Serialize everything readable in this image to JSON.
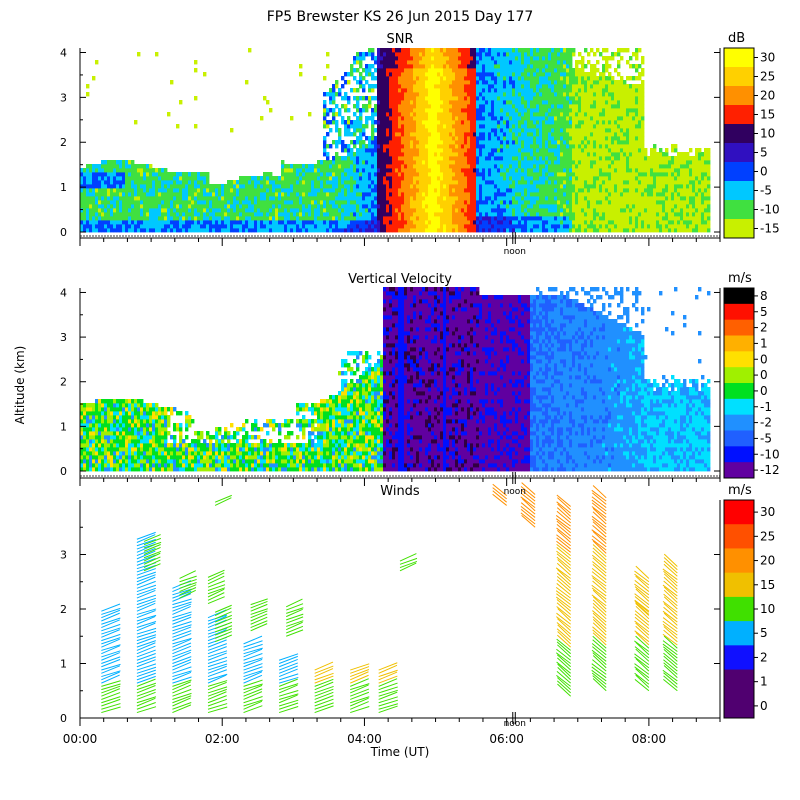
{
  "figure_title": "FP5 Brewster KS  26 Jun 2015 Day 177",
  "y_axis_label": "Altitude (km)",
  "x_axis_label": "Time (UT)",
  "noon_label": "noon",
  "colors": {
    "snr": [
      "#c8f000",
      "#40e040",
      "#00c8ff",
      "#0040ff",
      "#3010c0",
      "#300060",
      "#ff2000",
      "#ff9000",
      "#ffd000",
      "#ffff00"
    ],
    "vel": [
      "#300040",
      "#6000a0",
      "#0010ff",
      "#2060ff",
      "#2090ff",
      "#00e0ff",
      "#00e020",
      "#a0f000",
      "#ffe000",
      "#ffb000",
      "#ff6000",
      "#ff1000",
      "#000000"
    ],
    "wind": [
      "#500070",
      "#1010ff",
      "#00b0ff",
      "#40e000",
      "#f0c000",
      "#ff9000",
      "#ff5000",
      "#ff0000"
    ]
  },
  "chart_data": [
    {
      "type": "heatmap",
      "title": "SNR",
      "units": "dB",
      "xlim": [
        0,
        9
      ],
      "ylim": [
        0,
        4.1
      ],
      "x_ticks": [
        0,
        2,
        4,
        6,
        8
      ],
      "y_ticks": [
        0,
        1,
        2,
        3,
        4
      ],
      "colorbar_labels": [
        "30",
        "25",
        "20",
        "15",
        "10",
        "5",
        "0",
        "-5",
        "-10",
        "-15"
      ]
    },
    {
      "type": "heatmap",
      "title": "Vertical Velocity",
      "units": "m/s",
      "xlim": [
        0,
        9
      ],
      "ylim": [
        0,
        4.1
      ],
      "x_ticks": [
        0,
        2,
        4,
        6,
        8
      ],
      "y_ticks": [
        0,
        1,
        2,
        3,
        4
      ],
      "colorbar_labels": [
        "8",
        "5",
        "2",
        "1",
        "0",
        "0",
        "0",
        "-1",
        "-2",
        "-5",
        "-10",
        "-12"
      ]
    },
    {
      "type": "scatter",
      "title": "Winds",
      "units": "m/s",
      "xlim": [
        0,
        9
      ],
      "ylim": [
        0,
        4
      ],
      "x_ticks": [
        0,
        2,
        4,
        6,
        8
      ],
      "x_tick_labels": [
        "00:00",
        "02:00",
        "04:00",
        "06:00",
        "08:00"
      ],
      "y_ticks": [
        0,
        1,
        2,
        3
      ],
      "colorbar_labels": [
        "30",
        "25",
        "20",
        "15",
        "10",
        "5",
        "2",
        "1",
        "0"
      ]
    }
  ]
}
